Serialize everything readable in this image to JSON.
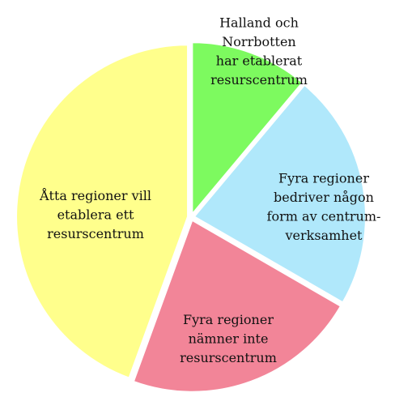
{
  "chart_data": {
    "type": "pie",
    "categories": [
      [
        "Halland och",
        "Norrbotten",
        "har etablerat",
        "resurscentrum"
      ],
      [
        "Fyra regioner",
        "bedriver någon",
        "form av centrum-",
        "verksamhet"
      ],
      [
        "Fyra regioner",
        "nämner inte",
        "resurscentrum"
      ],
      [
        "Åtta regioner vill",
        "etablera ett",
        "resurscentrum"
      ]
    ],
    "values": [
      2,
      4,
      4,
      8
    ],
    "colors": [
      "#7dfa5f",
      "#b0e8fb",
      "#f28598",
      "#ffff8c"
    ]
  }
}
